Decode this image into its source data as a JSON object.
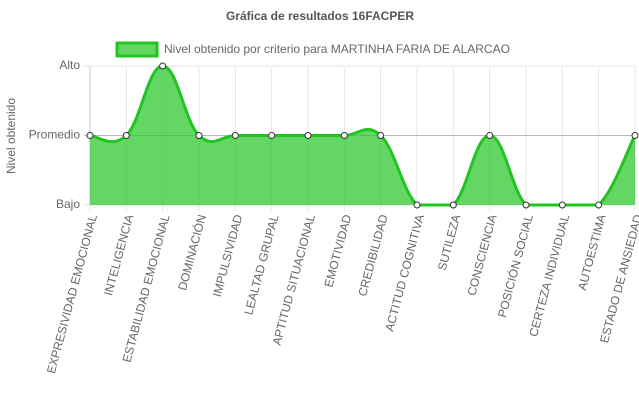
{
  "chart_data": {
    "type": "line",
    "title": "Gráfica de resultados 16FACPER",
    "y_label": "Nivel obtenido",
    "categories": [
      "EXPRESIVIDAD EMOCIONAL",
      "INTELIGENCIA",
      "ESTABILIDAD EMOCIONAL",
      "DOMINACIÓN",
      "IMPULSIVIDAD",
      "LEALTAD GRUPAL",
      "APTITUD SITUACIONAL",
      "EMOTIVIDAD",
      "CREDIBILIDAD",
      "ACTITUD COGNITIVA",
      "SUTILEZA",
      "CONSCIENCIA",
      "POSICIÓN SOCIAL",
      "CERTEZA INDIVIDUAL",
      "AUTOESTIMA",
      "ESTADO DE ANSIEDAD"
    ],
    "series": [
      {
        "name": "Nivel obtenido por criterio para MARTINHA FARIA DE ALARCAO",
        "color": "#22c422",
        "values": [
          2,
          2,
          3,
          2,
          2,
          2,
          2,
          2,
          2,
          1,
          1,
          2,
          1,
          1,
          1,
          2
        ]
      }
    ],
    "ylim": [
      1,
      3
    ],
    "yticks": [
      {
        "value": 1,
        "label": "Bajo"
      },
      {
        "value": 2,
        "label": "Promedio"
      },
      {
        "value": 3,
        "label": "Alto"
      }
    ],
    "grid": true,
    "fill": true
  }
}
